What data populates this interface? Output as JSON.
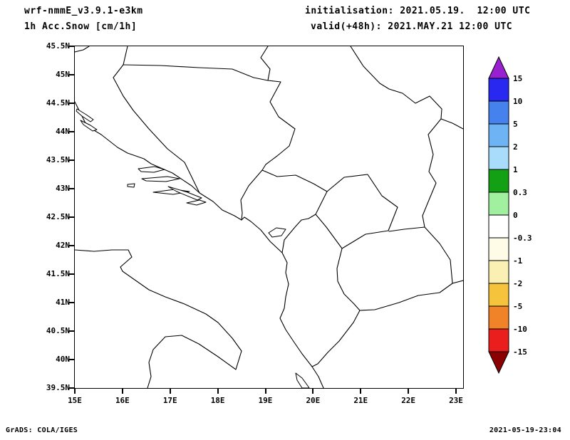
{
  "header": {
    "model_line": "wrf-nmmE_v3.9.1-e3km",
    "field_line": "1h Acc.Snow [cm/1h]",
    "init_line": "initialisation: 2021.05.19.  12:00 UTC",
    "valid_line": "valid(+48h): 2021.MAY.21 12:00 UTC"
  },
  "footer": {
    "generator": "GrADS: COLA/IGES",
    "timestamp": "2021-05-19-23:04"
  },
  "chart_data": {
    "type": "heatmap",
    "title": "1h Acc.Snow [cm/1h]",
    "model": "wrf-nmmE_v3.9.1-e3km",
    "initialisation": "2021.05.19. 12:00 UTC",
    "valid": "2021.MAY.21 12:00 UTC (+48h)",
    "region": "Adriatic / Balkans map with coastlines and country borders",
    "lon_range_deg_east": [
      15,
      23.15
    ],
    "lat_range_deg_north": [
      39.5,
      45.5
    ],
    "x_tick_labels": [
      "15E",
      "16E",
      "17E",
      "18E",
      "19E",
      "20E",
      "21E",
      "22E",
      "23E"
    ],
    "y_tick_labels_top_to_bottom": [
      "45.5N",
      "45N",
      "44.5N",
      "44N",
      "43.5N",
      "43N",
      "42.5N",
      "42N",
      "41.5N",
      "41N",
      "40.5N",
      "40N",
      "39.5N"
    ],
    "field_summary": "no shaded snow accumulation anywhere in the domain (entire field in the 0 band, map background white)",
    "colorbar": {
      "units": "cm/1h",
      "boundary_labels_top_to_bottom": [
        "15",
        "10",
        "5",
        "2",
        "1",
        "0.3",
        "0",
        "-0.3",
        "-1",
        "-2",
        "-5",
        "-10",
        "-15"
      ],
      "segment_colors_top_to_bottom": [
        "#2828F0",
        "#4682EE",
        "#6EB4F5",
        "#A8DCFA",
        "#14A014",
        "#A0F0A0",
        "#FFFFFF",
        "#FEFBE7",
        "#FAF0B4",
        "#F5C33C",
        "#F08228",
        "#EB1E1E"
      ],
      "arrow_top_color": "#9820D0",
      "arrow_bottom_color": "#8B0000"
    },
    "grid": false,
    "legend_position": "right"
  }
}
